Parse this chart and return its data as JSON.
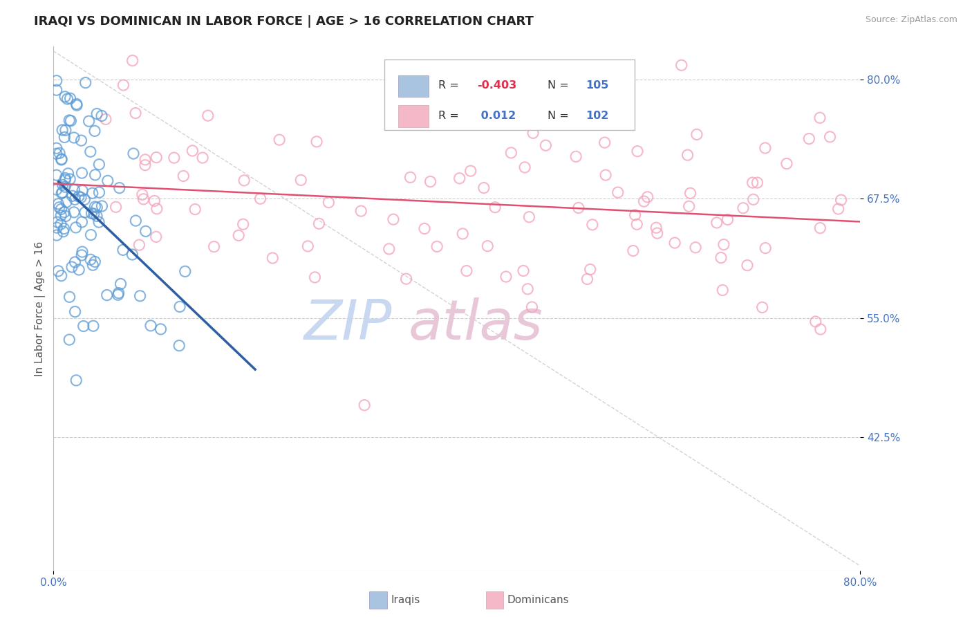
{
  "title": "IRAQI VS DOMINICAN IN LABOR FORCE | AGE > 16 CORRELATION CHART",
  "source_text": "Source: ZipAtlas.com",
  "ylabel": "In Labor Force | Age > 16",
  "xlim": [
    0.0,
    0.8
  ],
  "ylim": [
    0.285,
    0.835
  ],
  "xtick_vals": [
    0.0,
    0.8
  ],
  "xtick_labels": [
    "0.0%",
    "80.0%"
  ],
  "ytick_values": [
    0.8,
    0.675,
    0.55,
    0.425
  ],
  "ytick_labels": [
    "80.0%",
    "67.5%",
    "55.0%",
    "42.5%"
  ],
  "grid_color": "#cccccc",
  "background_color": "#ffffff",
  "legend_color_1": "#a8c4e0",
  "legend_color_2": "#f4b8c8",
  "scatter_color_1": "#5b9bd5",
  "scatter_color_2": "#f4a0b8",
  "trend_color_1": "#2e5fa3",
  "trend_color_2": "#e05070",
  "diag_color": "#c8c8c8",
  "watermark": "ZIPatlas",
  "watermark_color_1": "#c8d8f0",
  "watermark_color_2": "#e8c8d8",
  "footer_label_1": "Iraqis",
  "footer_label_2": "Dominicans",
  "R1": -0.403,
  "N1": 105,
  "R2": 0.012,
  "N2": 102,
  "title_fontsize": 13,
  "tick_fontsize": 11,
  "ylabel_fontsize": 11
}
